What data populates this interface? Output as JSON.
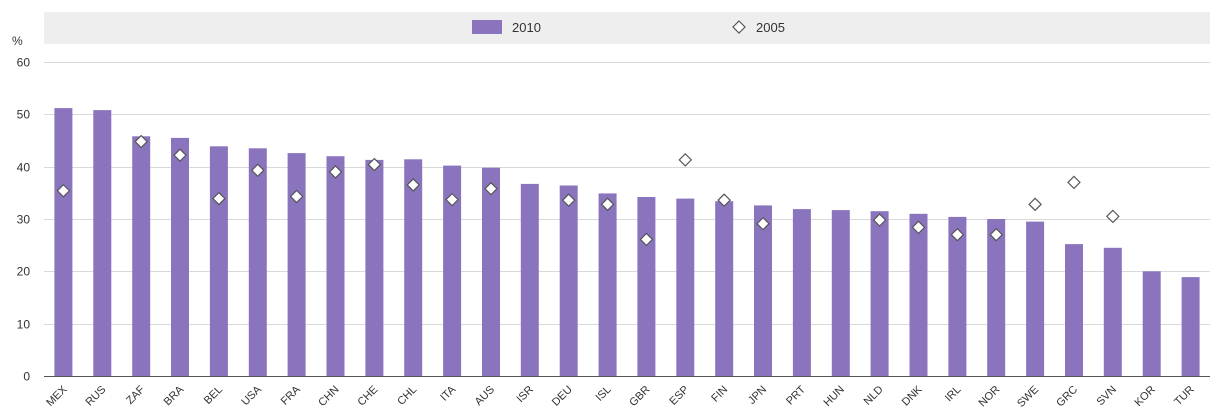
{
  "chart_data": {
    "type": "bar",
    "ylabel": "%",
    "ylim": [
      0,
      60
    ],
    "yticks": [
      0,
      10,
      20,
      30,
      40,
      50,
      60
    ],
    "grid": "horizontal",
    "legend_position": "top",
    "categories": [
      "MEX",
      "RUS",
      "ZAF",
      "BRA",
      "BEL",
      "USA",
      "FRA",
      "CHN",
      "CHE",
      "CHL",
      "ITA",
      "AUS",
      "ISR",
      "DEU",
      "ISL",
      "GBR",
      "ESP",
      "FIN",
      "JPN",
      "PRT",
      "HUN",
      "NLD",
      "DNK",
      "IRL",
      "NOR",
      "SWE",
      "GRC",
      "SVN",
      "KOR",
      "TUR"
    ],
    "series": [
      {
        "name": "2010",
        "mark": "bar",
        "color": "#8b74be",
        "values": [
          51.2,
          50.8,
          45.8,
          45.5,
          43.9,
          43.5,
          42.6,
          42.0,
          41.3,
          41.4,
          40.2,
          39.8,
          36.7,
          36.4,
          34.9,
          34.2,
          33.9,
          33.4,
          32.6,
          31.9,
          31.7,
          31.5,
          31.0,
          30.4,
          30.0,
          29.5,
          25.2,
          24.5,
          20.0,
          18.9
        ]
      },
      {
        "name": "2005",
        "mark": "diamond",
        "color": "#ffffff",
        "values": [
          35.4,
          null,
          44.8,
          42.2,
          33.9,
          39.3,
          34.3,
          39.0,
          40.4,
          36.5,
          33.7,
          35.8,
          null,
          33.6,
          32.8,
          26.1,
          41.3,
          33.6,
          29.1,
          null,
          null,
          29.8,
          28.4,
          27.0,
          27.0,
          32.8,
          37.0,
          30.5,
          null,
          null
        ]
      }
    ]
  }
}
